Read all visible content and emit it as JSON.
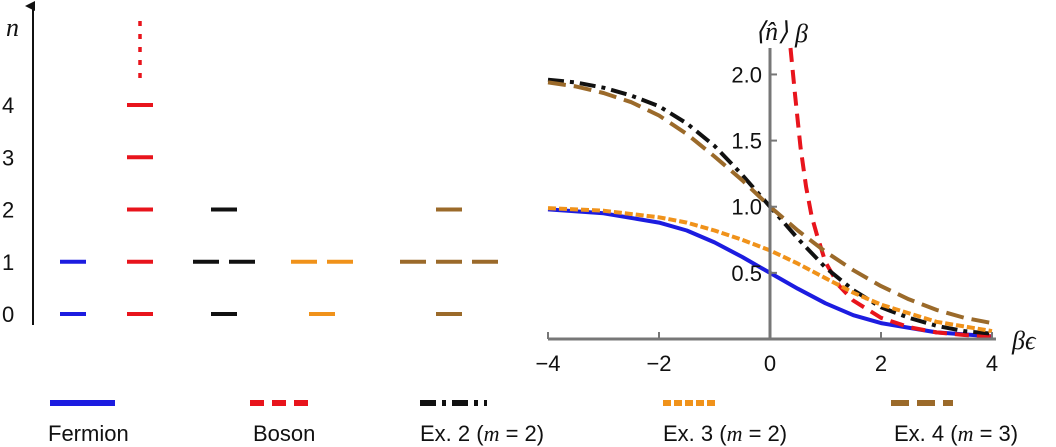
{
  "colors": {
    "fermion": "#1c1ce0",
    "boson": "#e8141c",
    "ex2": "#111111",
    "ex3": "#f0921a",
    "ex4": "#9b6a2a",
    "axis": "#777777"
  },
  "level_diagram": {
    "ylabel": "n",
    "ticks": [
      "0",
      "1",
      "2",
      "3",
      "4"
    ],
    "columns": [
      {
        "name": "fermion",
        "levels": [
          {
            "n": 0,
            "count": 1
          },
          {
            "n": 1,
            "count": 1
          }
        ]
      },
      {
        "name": "boson",
        "levels": [
          {
            "n": 0,
            "count": 1
          },
          {
            "n": 1,
            "count": 1
          },
          {
            "n": 2,
            "count": 1
          },
          {
            "n": 3,
            "count": 1
          },
          {
            "n": 4,
            "count": 1
          }
        ],
        "continues": true
      },
      {
        "name": "ex2",
        "levels": [
          {
            "n": 0,
            "count": 1
          },
          {
            "n": 1,
            "count": 2
          },
          {
            "n": 2,
            "count": 1
          }
        ]
      },
      {
        "name": "ex3",
        "levels": [
          {
            "n": 0,
            "count": 1
          },
          {
            "n": 1,
            "count": 2
          }
        ]
      },
      {
        "name": "ex4",
        "levels": [
          {
            "n": 0,
            "count": 1
          },
          {
            "n": 1,
            "count": 3
          },
          {
            "n": 2,
            "count": 1
          }
        ]
      }
    ]
  },
  "chart_data": {
    "type": "line",
    "xlabel": "βϵ",
    "ylabel": "⟨n̂⟩",
    "ylabel2": "β",
    "xlim": [
      -4,
      4
    ],
    "ylim": [
      0,
      2.2
    ],
    "xticks": [
      -4,
      -2,
      0,
      2,
      4
    ],
    "xtick_labels": [
      "−4",
      "−2",
      "0",
      "2",
      "4"
    ],
    "yticks": [
      0.5,
      1.0,
      1.5,
      2.0
    ],
    "ytick_labels": [
      "0.5",
      "1.0",
      "1.5",
      "2.0"
    ],
    "grid": false,
    "series": [
      {
        "name": "Fermion",
        "key": "fermion",
        "style": "solid",
        "x": [
          -4,
          -3,
          -2,
          -1.5,
          -1,
          -0.5,
          0,
          0.5,
          1,
          1.5,
          2,
          3,
          4
        ],
        "y": [
          0.98,
          0.95,
          0.88,
          0.82,
          0.73,
          0.62,
          0.5,
          0.38,
          0.27,
          0.18,
          0.12,
          0.05,
          0.02
        ]
      },
      {
        "name": "Boson",
        "key": "boson",
        "style": "dashed",
        "x": [
          0.37,
          0.45,
          0.55,
          0.65,
          0.75,
          0.85,
          1,
          1.25,
          1.5,
          2,
          2.5,
          3,
          3.5,
          4
        ],
        "y": [
          2.2,
          1.85,
          1.45,
          1.15,
          0.93,
          0.78,
          0.58,
          0.4,
          0.29,
          0.16,
          0.09,
          0.05,
          0.03,
          0.02
        ]
      },
      {
        "name": "Ex. 2 (m = 2)",
        "key": "ex2",
        "style": "dashdot",
        "x": [
          -4,
          -3.5,
          -3,
          -2.5,
          -2,
          -1.5,
          -1,
          -0.5,
          0,
          0.5,
          1,
          1.5,
          2,
          2.5,
          3,
          3.5,
          4
        ],
        "y": [
          1.96,
          1.94,
          1.9,
          1.84,
          1.76,
          1.63,
          1.46,
          1.24,
          1.0,
          0.76,
          0.54,
          0.37,
          0.24,
          0.16,
          0.1,
          0.06,
          0.04
        ]
      },
      {
        "name": "Ex. 3 (m = 2)",
        "key": "ex3",
        "style": "dotted",
        "x": [
          -4,
          -3,
          -2,
          -1.5,
          -1,
          -0.5,
          0,
          0.5,
          1,
          1.5,
          2,
          3,
          4
        ],
        "y": [
          0.99,
          0.97,
          0.92,
          0.88,
          0.82,
          0.75,
          0.67,
          0.57,
          0.46,
          0.35,
          0.26,
          0.13,
          0.06
        ]
      },
      {
        "name": "Ex. 4 (m = 3)",
        "key": "ex4",
        "style": "dashed-long",
        "x": [
          -4,
          -3.5,
          -3,
          -2.5,
          -2,
          -1.5,
          -1,
          -0.5,
          0,
          0.5,
          1,
          1.5,
          2,
          2.5,
          3,
          3.5,
          4
        ],
        "y": [
          1.94,
          1.91,
          1.86,
          1.79,
          1.69,
          1.55,
          1.38,
          1.2,
          1.0,
          0.82,
          0.66,
          0.52,
          0.4,
          0.3,
          0.22,
          0.16,
          0.12
        ]
      }
    ]
  },
  "legend": [
    {
      "key": "fermion",
      "style": "solid",
      "label": "Fermion"
    },
    {
      "key": "boson",
      "style": "dashed",
      "label": "Boson"
    },
    {
      "key": "ex2",
      "style": "dashdot",
      "prefix": "Ex. 2 (",
      "var": "m",
      "suffix": " = 2)"
    },
    {
      "key": "ex3",
      "style": "dotted",
      "prefix": "Ex. 3 (",
      "var": "m",
      "suffix": " = 2)"
    },
    {
      "key": "ex4",
      "style": "dashed-long",
      "prefix": "Ex. 4 (",
      "var": "m",
      "suffix": " = 3)"
    }
  ]
}
